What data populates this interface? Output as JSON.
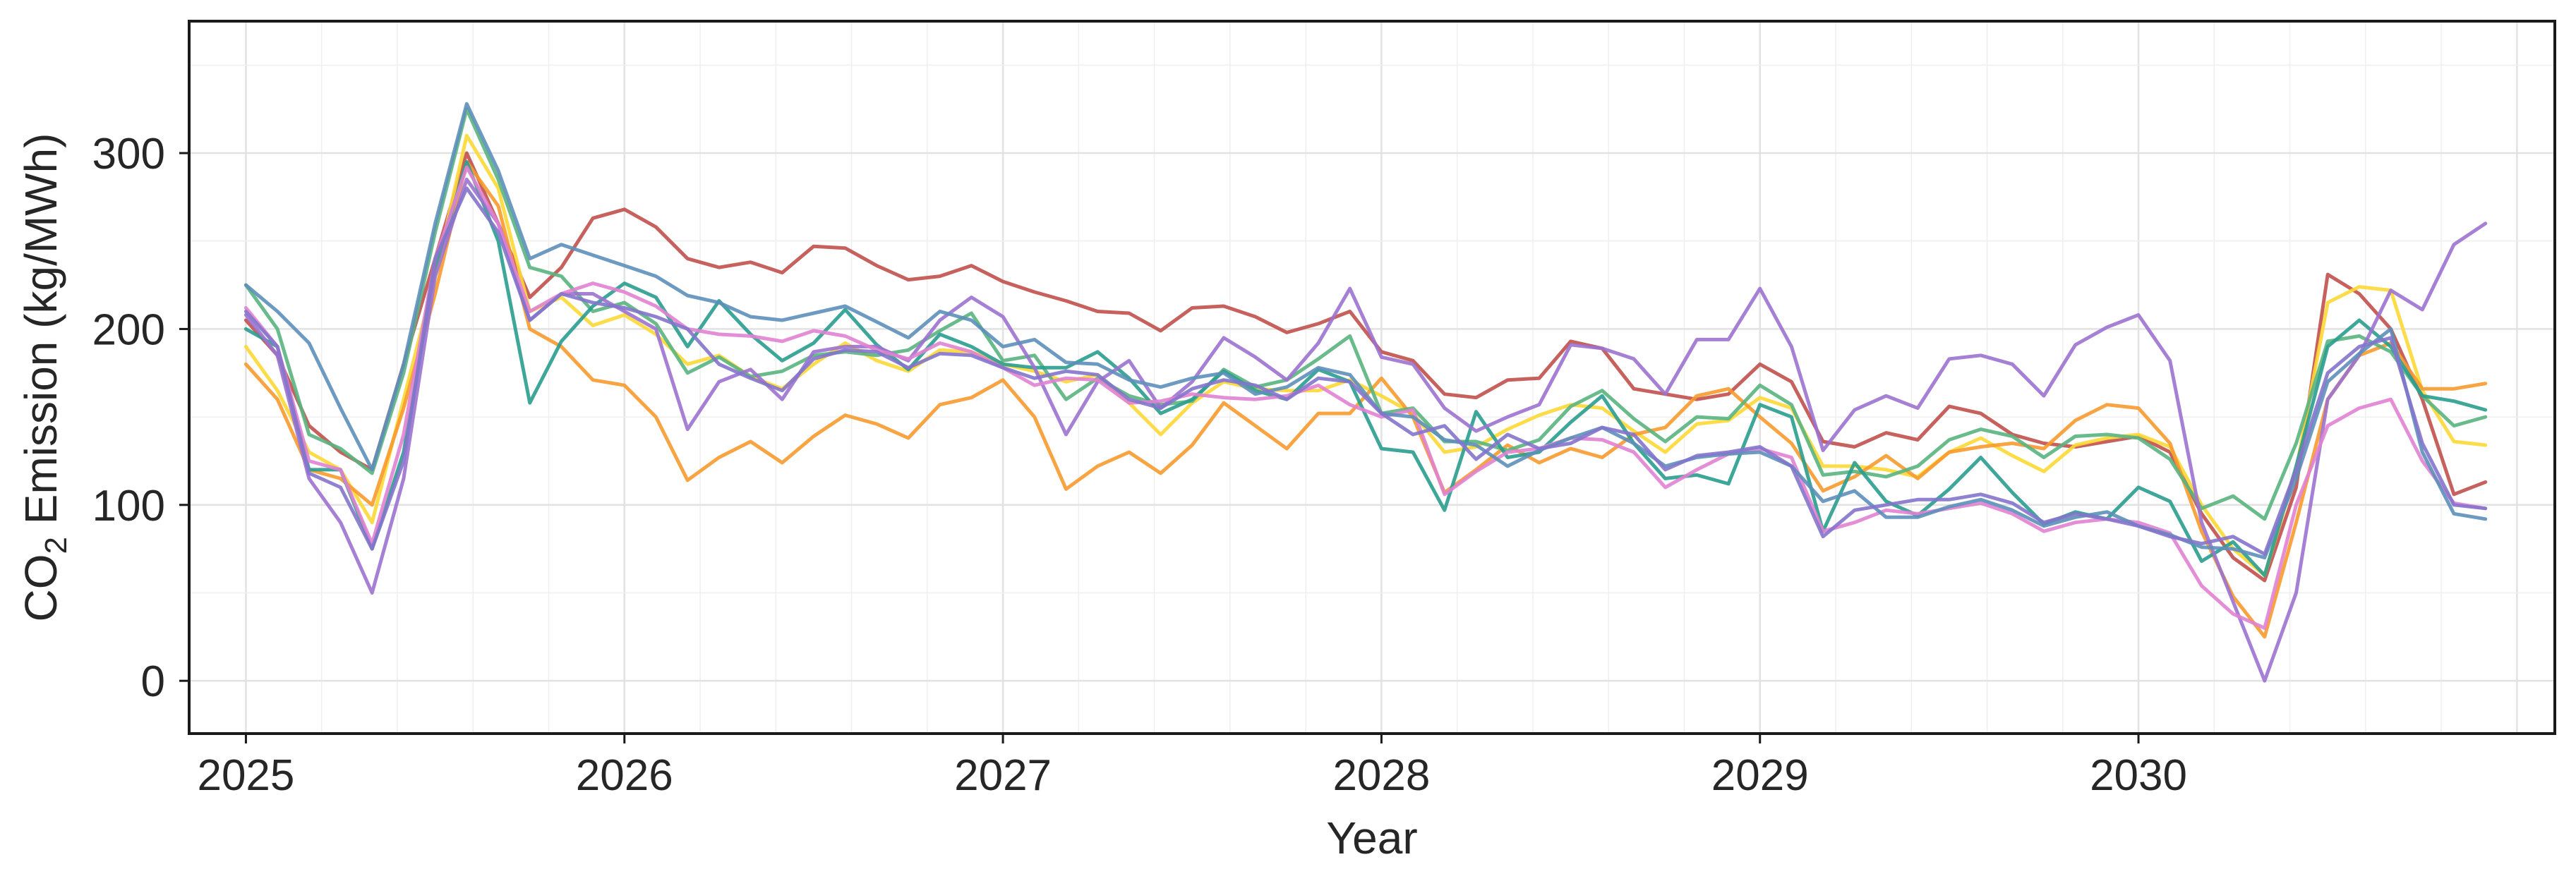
{
  "chart_data": {
    "type": "line",
    "title": "",
    "xlabel": "Year",
    "ylabel": {
      "prefix": "CO",
      "subscript": "2",
      "suffix": " Emission (kg/MWh)"
    },
    "xlim": [
      2024.85,
      2031.1
    ],
    "ylim": [
      -30,
      375
    ],
    "xticks": [
      2025,
      2026,
      2027,
      2028,
      2029,
      2030
    ],
    "yticks": [
      0,
      100,
      200,
      300
    ],
    "grid": true,
    "legend": "none",
    "x": [
      2025.0,
      2025.0833,
      2025.1667,
      2025.25,
      2025.3333,
      2025.4167,
      2025.5,
      2025.5833,
      2025.6667,
      2025.75,
      2025.8333,
      2025.9167,
      2026.0,
      2026.0833,
      2026.1667,
      2026.25,
      2026.3333,
      2026.4167,
      2026.5,
      2026.5833,
      2026.6667,
      2026.75,
      2026.8333,
      2026.9167,
      2027.0,
      2027.0833,
      2027.1667,
      2027.25,
      2027.3333,
      2027.4167,
      2027.5,
      2027.5833,
      2027.6667,
      2027.75,
      2027.8333,
      2027.9167,
      2028.0,
      2028.0833,
      2028.1667,
      2028.25,
      2028.3333,
      2028.4167,
      2028.5,
      2028.5833,
      2028.6667,
      2028.75,
      2028.8333,
      2028.9167,
      2029.0,
      2029.0833,
      2029.1667,
      2029.25,
      2029.3333,
      2029.4167,
      2029.5,
      2029.5833,
      2029.6667,
      2029.75,
      2029.8333,
      2029.9167,
      2030.0,
      2030.0833,
      2030.1667,
      2030.25,
      2030.3333,
      2030.4167,
      2030.5,
      2030.5833,
      2030.6667,
      2030.75,
      2030.8333,
      2030.9167
    ],
    "series": [
      {
        "color": "#c0504d",
        "values": [
          205,
          185,
          145,
          130,
          120,
          180,
          240,
          300,
          260,
          218,
          235,
          263,
          268,
          258,
          240,
          235,
          238,
          232,
          247,
          246,
          236,
          228,
          230,
          236,
          227,
          221,
          216,
          210,
          209,
          199,
          212,
          213,
          207,
          198,
          203,
          210,
          187,
          182,
          163,
          161,
          171,
          172,
          193,
          189,
          166,
          163,
          160,
          163,
          180,
          170,
          136,
          133,
          141,
          137,
          156,
          152,
          140,
          135,
          133,
          136,
          139,
          130,
          95,
          70,
          57,
          110,
          231,
          220,
          200,
          160,
          106,
          113
        ]
      },
      {
        "color": "#fdd835",
        "values": [
          190,
          165,
          130,
          120,
          90,
          160,
          230,
          310,
          280,
          210,
          218,
          202,
          208,
          197,
          180,
          185,
          173,
          166,
          180,
          192,
          182,
          176,
          188,
          187,
          180,
          176,
          170,
          174,
          158,
          140,
          158,
          170,
          166,
          165,
          165,
          171,
          162,
          152,
          130,
          133,
          143,
          151,
          157,
          155,
          142,
          130,
          146,
          148,
          161,
          155,
          122,
          122,
          120,
          116,
          130,
          138,
          128,
          119,
          134,
          138,
          140,
          133,
          100,
          75,
          60,
          120,
          215,
          224,
          222,
          165,
          136,
          134
        ]
      },
      {
        "color": "#f79a2e",
        "values": [
          180,
          160,
          120,
          115,
          100,
          155,
          220,
          295,
          270,
          200,
          190,
          171,
          168,
          150,
          114,
          127,
          136,
          124,
          139,
          151,
          146,
          138,
          157,
          161,
          171,
          150,
          109,
          122,
          130,
          118,
          134,
          158,
          145,
          132,
          152,
          152,
          172,
          150,
          107,
          120,
          134,
          124,
          132,
          127,
          140,
          144,
          162,
          166,
          150,
          135,
          108,
          116,
          128,
          115,
          130,
          133,
          135,
          132,
          148,
          157,
          155,
          135,
          85,
          48,
          25,
          90,
          160,
          185,
          192,
          166,
          166,
          169
        ]
      },
      {
        "color": "#5ab47f",
        "values": [
          225,
          200,
          140,
          132,
          118,
          175,
          255,
          325,
          285,
          235,
          230,
          210,
          215,
          203,
          175,
          184,
          173,
          176,
          185,
          187,
          185,
          188,
          199,
          209,
          182,
          185,
          160,
          172,
          162,
          157,
          159,
          177,
          167,
          171,
          183,
          196,
          152,
          155,
          136,
          136,
          131,
          137,
          156,
          165,
          149,
          136,
          150,
          149,
          168,
          157,
          117,
          119,
          116,
          122,
          137,
          143,
          139,
          127,
          139,
          140,
          138,
          126,
          98,
          105,
          92,
          135,
          193,
          196,
          187,
          162,
          145,
          150
        ]
      },
      {
        "color": "#2a9d8f",
        "values": [
          200,
          190,
          120,
          120,
          75,
          130,
          235,
          295,
          250,
          158,
          193,
          213,
          226,
          218,
          190,
          216,
          197,
          182,
          192,
          211,
          191,
          177,
          197,
          190,
          180,
          178,
          178,
          187,
          172,
          152,
          160,
          176,
          165,
          160,
          177,
          170,
          132,
          130,
          97,
          153,
          127,
          130,
          147,
          162,
          135,
          115,
          117,
          112,
          157,
          150,
          85,
          124,
          102,
          94,
          109,
          127,
          107,
          89,
          96,
          92,
          110,
          102,
          68,
          79,
          60,
          122,
          190,
          205,
          190,
          162,
          159,
          154
        ]
      },
      {
        "color": "#9b72cf",
        "values": [
          208,
          185,
          115,
          90,
          50,
          115,
          230,
          285,
          260,
          205,
          220,
          220,
          210,
          200,
          143,
          170,
          177,
          160,
          187,
          190,
          190,
          182,
          205,
          218,
          207,
          178,
          140,
          170,
          182,
          155,
          170,
          195,
          184,
          171,
          192,
          223,
          184,
          180,
          155,
          142,
          150,
          157,
          191,
          189,
          183,
          163,
          194,
          194,
          223,
          190,
          131,
          154,
          162,
          155,
          183,
          185,
          180,
          162,
          191,
          201,
          208,
          182,
          90,
          45,
          0,
          50,
          160,
          185,
          222,
          211,
          248,
          260
        ]
      },
      {
        "color": "#e082d2",
        "values": [
          212,
          190,
          125,
          120,
          78,
          140,
          240,
          292,
          260,
          210,
          220,
          226,
          221,
          213,
          200,
          197,
          196,
          193,
          199,
          196,
          188,
          183,
          192,
          187,
          178,
          168,
          172,
          171,
          158,
          159,
          163,
          161,
          160,
          162,
          168,
          157,
          150,
          154,
          106,
          119,
          130,
          132,
          138,
          137,
          130,
          110,
          120,
          129,
          132,
          127,
          85,
          90,
          97,
          95,
          98,
          101,
          95,
          85,
          90,
          92,
          90,
          84,
          54,
          38,
          30,
          100,
          145,
          155,
          160,
          125,
          101,
          98
        ]
      },
      {
        "color": "#5d8fba",
        "values": [
          225,
          210,
          192,
          155,
          120,
          180,
          260,
          328,
          290,
          240,
          248,
          242,
          236,
          230,
          219,
          215,
          207,
          205,
          209,
          213,
          204,
          195,
          210,
          205,
          190,
          194,
          181,
          180,
          171,
          167,
          172,
          175,
          163,
          167,
          178,
          174,
          152,
          150,
          137,
          134,
          122,
          131,
          138,
          144,
          135,
          122,
          127,
          129,
          130,
          122,
          102,
          108,
          93,
          93,
          99,
          103,
          97,
          88,
          93,
          96,
          88,
          83,
          76,
          75,
          70,
          115,
          170,
          186,
          200,
          130,
          95,
          92
        ]
      },
      {
        "color": "#8474cc",
        "values": [
          210,
          190,
          118,
          110,
          75,
          125,
          240,
          280,
          255,
          205,
          220,
          215,
          212,
          207,
          200,
          180,
          172,
          165,
          183,
          188,
          187,
          178,
          186,
          185,
          178,
          172,
          176,
          174,
          160,
          155,
          166,
          171,
          168,
          160,
          172,
          170,
          152,
          140,
          145,
          126,
          140,
          132,
          135,
          144,
          140,
          120,
          128,
          130,
          133,
          122,
          82,
          97,
          100,
          103,
          103,
          106,
          101,
          90,
          95,
          92,
          88,
          82,
          78,
          82,
          72,
          120,
          175,
          190,
          195,
          135,
          100,
          98
        ]
      }
    ]
  }
}
